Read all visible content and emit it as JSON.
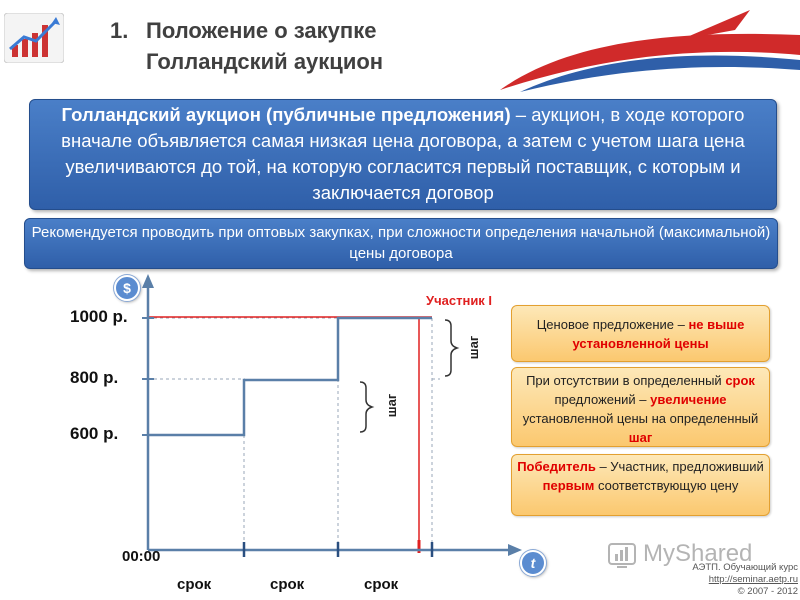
{
  "header": {
    "number": "1.",
    "title_line1": "Положение о закупке",
    "title_line2": "Голландский аукцион"
  },
  "definition": {
    "term": "Голландский аукцион (публичные предложения)",
    "text": " – аукцион, в ходе которого вначале объявляется самая низкая цена договора, а затем с учетом шага цена увеличиваются до той, на которую согласится первый поставщик, с которым и заключается договор"
  },
  "recommendation": "Рекомендуется проводить при оптовых закупках, при сложности определения начальной (максимальной) цены договора",
  "chart": {
    "y_icon": "$",
    "x_icon": "t",
    "price_labels": [
      "1000 р.",
      "800 р.",
      "600 р."
    ],
    "time_origin": "00:00",
    "period_labels": [
      "срок",
      "срок",
      "срок"
    ],
    "step_label_1": "шаг",
    "step_label_2": "шаг",
    "participant_label": "Участник I",
    "line_color": "#5a7fa8",
    "highlight_color": "#e02020"
  },
  "notes": {
    "note1": {
      "a": "Ценовое предложение – ",
      "b": "не выше установленной цены"
    },
    "note2": {
      "a": "При отсутствии в определенный ",
      "b": "срок",
      "c": " предложений – ",
      "d": "увеличение",
      "e": " установленной цены на определенный ",
      "f": "шаг"
    },
    "note3": {
      "a": "Победитель",
      "b": " – Участник, предложивший ",
      "c": "первым",
      "d": " соответствующую цену"
    }
  },
  "footer": {
    "brand": "MyShared",
    "line1": "АЭТП. Обучающий курс",
    "line2": "http://seminar.aetp.ru",
    "line3": "© 2007 - 2012"
  }
}
